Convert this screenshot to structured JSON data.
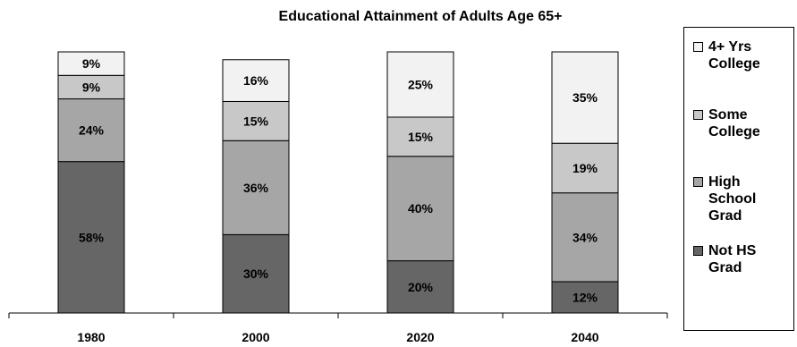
{
  "chart_data": {
    "type": "bar",
    "stacked": true,
    "title": "Educational Attainment of Adults Age 65+",
    "categories": [
      "1980",
      "2000",
      "2020",
      "2040"
    ],
    "series": [
      {
        "name": "Not HS Grad",
        "color": "#666666",
        "values": [
          58,
          30,
          20,
          12
        ],
        "labels": [
          "58%",
          "30%",
          "20%",
          "12%"
        ]
      },
      {
        "name": "High School Grad",
        "color": "#a6a6a6",
        "values": [
          24,
          36,
          40,
          34
        ],
        "labels": [
          "24%",
          "36%",
          "40%",
          "34%"
        ]
      },
      {
        "name": "Some College",
        "color": "#c8c8c8",
        "values": [
          9,
          15,
          15,
          19
        ],
        "labels": [
          "9%",
          "15%",
          "15%",
          "19%"
        ]
      },
      {
        "name": "4+ Yrs College",
        "color": "#f2f2f2",
        "values": [
          9,
          16,
          25,
          35
        ],
        "labels": [
          "9%",
          "16%",
          "25%",
          "35%"
        ]
      }
    ],
    "ylim": [
      0,
      100
    ],
    "grid": false,
    "legend_position": "right"
  },
  "legend": [
    {
      "label": "4+ Yrs\nCollege",
      "color": "#f2f2f2"
    },
    {
      "label": "Some\nCollege",
      "color": "#c8c8c8"
    },
    {
      "label": "High\nSchool\nGrad",
      "color": "#a6a6a6"
    },
    {
      "label": "Not HS\nGrad",
      "color": "#666666"
    }
  ]
}
